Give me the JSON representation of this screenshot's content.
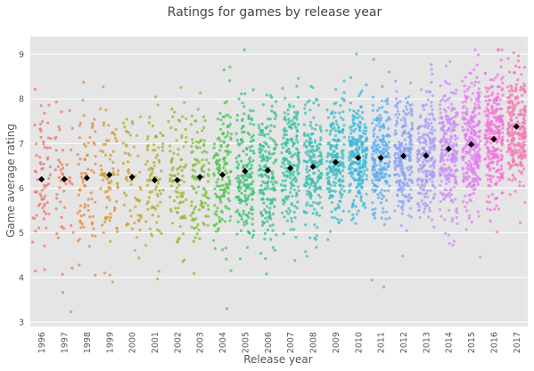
{
  "chart_data": {
    "type": "strip",
    "title": "Ratings for games by release year",
    "xlabel": "Release year",
    "ylabel": "Game average rating",
    "categories": [
      "1996",
      "1997",
      "1998",
      "1999",
      "2000",
      "2001",
      "2002",
      "2003",
      "2004",
      "2005",
      "2006",
      "2007",
      "2008",
      "2009",
      "2010",
      "2011",
      "2012",
      "2013",
      "2014",
      "2015",
      "2016",
      "2017"
    ],
    "means": [
      6.2,
      6.2,
      6.23,
      6.3,
      6.25,
      6.18,
      6.18,
      6.25,
      6.3,
      6.38,
      6.4,
      6.45,
      6.48,
      6.58,
      6.68,
      6.68,
      6.72,
      6.73,
      6.88,
      6.98,
      7.1,
      7.38
    ],
    "yticks": [
      3,
      4,
      5,
      6,
      7,
      8,
      9
    ],
    "ylim": [
      2.9,
      9.4
    ],
    "point_counts": [
      70,
      50,
      70,
      80,
      60,
      80,
      90,
      110,
      150,
      180,
      180,
      190,
      190,
      210,
      240,
      220,
      230,
      210,
      240,
      280,
      260,
      230
    ],
    "spread_sd": [
      0.85,
      0.85,
      0.9,
      0.85,
      0.85,
      0.85,
      0.85,
      0.8,
      0.8,
      0.75,
      0.75,
      0.75,
      0.7,
      0.7,
      0.7,
      0.7,
      0.7,
      0.7,
      0.7,
      0.75,
      0.75,
      0.65
    ],
    "point_colors": [
      "#f0756b",
      "#ee7a55",
      "#e88a3c",
      "#d69a31",
      "#c3a52f",
      "#aeae2f",
      "#98b52f",
      "#7fbc3b",
      "#54c251",
      "#39c274",
      "#36c28e",
      "#37c1a2",
      "#38c0b3",
      "#39bec6",
      "#3ab8dc",
      "#5eaef0",
      "#8aa3f6",
      "#a99af7",
      "#c98cf5",
      "#e37df0",
      "#f472d7",
      "#f476b4"
    ],
    "mean_marker_color": "#000000",
    "grid": true,
    "background": "#e5e5e5",
    "grid_color": "#ffffff"
  }
}
